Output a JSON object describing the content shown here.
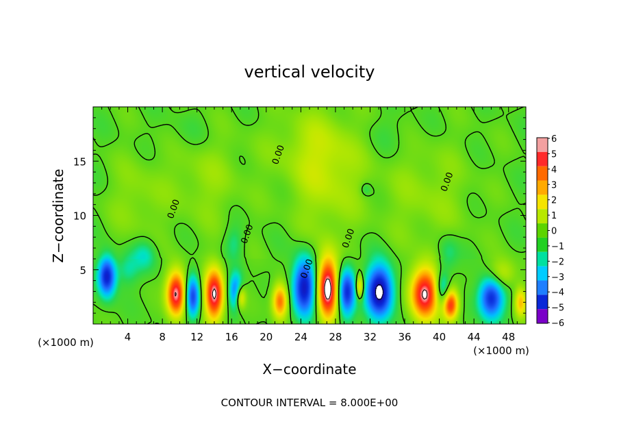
{
  "chart_data": {
    "type": "heatmap",
    "title": "vertical velocity",
    "xlabel": "X−coordinate",
    "ylabel": "Z−coordinate",
    "x_unit_label": "(×1000 m)",
    "footer": "CONTOUR INTERVAL = 8.000E+00",
    "xlim": [
      0,
      50
    ],
    "ylim": [
      0,
      20
    ],
    "x_ticks": [
      4,
      8,
      12,
      16,
      20,
      24,
      28,
      32,
      36,
      40,
      44,
      48
    ],
    "y_ticks": [
      5,
      10,
      15
    ],
    "contour_labels": [
      {
        "text": "0.00",
        "x": 9.6,
        "z": 10.5
      },
      {
        "text": "0.00",
        "x": 21.7,
        "z": 15.5
      },
      {
        "text": "0.00",
        "x": 18.1,
        "z": 8.2
      },
      {
        "text": "0.00",
        "x": 25.0,
        "z": 5.0
      },
      {
        "text": "0.00",
        "x": 29.8,
        "z": 7.8
      },
      {
        "text": "0.00",
        "x": 41.2,
        "z": 13.0
      }
    ],
    "colorbar": {
      "ticks": [
        "6",
        "5",
        "4",
        "3",
        "2",
        "1",
        "0",
        "−1",
        "−2",
        "−3",
        "−4",
        "−5",
        "−6"
      ],
      "colors": [
        "#f3a0a0",
        "#ff2a2a",
        "#ff6a00",
        "#ffaa00",
        "#f5e400",
        "#b8e800",
        "#5cd400",
        "#22d022",
        "#00e0a0",
        "#00ccff",
        "#1f7fff",
        "#0a28d8",
        "#7a00c8"
      ]
    },
    "features": [
      {
        "kind": "down",
        "x": 1.6,
        "z": 4.4,
        "rx": 1.0,
        "rz": 1.8,
        "a": 0.9
      },
      {
        "kind": "up",
        "x": 9.6,
        "z": 2.8,
        "rx": 1.1,
        "rz": 2.1,
        "a": 1.0
      },
      {
        "kind": "down",
        "x": 11.5,
        "z": 2.5,
        "rx": 0.8,
        "rz": 1.9,
        "a": 0.75
      },
      {
        "kind": "up",
        "x": 14.0,
        "z": 2.7,
        "rx": 1.1,
        "rz": 2.4,
        "a": 1.0
      },
      {
        "kind": "down",
        "x": 16.5,
        "z": 3.0,
        "rx": 0.8,
        "rz": 1.6,
        "a": 0.65
      },
      {
        "kind": "up",
        "x": 17.0,
        "z": 2.5,
        "rx": 0.6,
        "rz": 1.1,
        "a": 0.6
      },
      {
        "kind": "up",
        "x": 21.6,
        "z": 2.1,
        "rx": 0.9,
        "rz": 1.6,
        "a": 0.7
      },
      {
        "kind": "down",
        "x": 24.4,
        "z": 3.4,
        "rx": 1.3,
        "rz": 2.6,
        "a": 0.95
      },
      {
        "kind": "up",
        "x": 27.1,
        "z": 3.3,
        "rx": 1.2,
        "rz": 2.9,
        "a": 1.1
      },
      {
        "kind": "down",
        "x": 29.3,
        "z": 2.9,
        "rx": 1.0,
        "rz": 2.2,
        "a": 0.85
      },
      {
        "kind": "up",
        "x": 30.8,
        "z": 3.4,
        "rx": 0.5,
        "rz": 1.1,
        "a": 0.55
      },
      {
        "kind": "down",
        "x": 33.1,
        "z": 3.0,
        "rx": 1.5,
        "rz": 2.4,
        "a": 1.05
      },
      {
        "kind": "up",
        "x": 38.3,
        "z": 2.8,
        "rx": 1.6,
        "rz": 2.4,
        "a": 1.0
      },
      {
        "kind": "down",
        "x": 40.4,
        "z": 3.2,
        "rx": 0.8,
        "rz": 1.6,
        "a": 0.45
      },
      {
        "kind": "up",
        "x": 41.3,
        "z": 1.8,
        "rx": 0.9,
        "rz": 1.4,
        "a": 0.85
      },
      {
        "kind": "down",
        "x": 46.0,
        "z": 2.4,
        "rx": 1.4,
        "rz": 1.9,
        "a": 0.85
      },
      {
        "kind": "up",
        "x": 47.2,
        "z": 4.6,
        "rx": 1.6,
        "rz": 1.4,
        "a": 0.3
      },
      {
        "kind": "up",
        "x": 49.4,
        "z": 2.0,
        "rx": 0.7,
        "rz": 1.4,
        "a": 0.5
      },
      {
        "kind": "down",
        "x": 6.0,
        "z": 6.3,
        "rx": 1.4,
        "rz": 1.5,
        "a": 0.25
      },
      {
        "kind": "down",
        "x": 4.0,
        "z": 5.0,
        "rx": 1.2,
        "rz": 1.4,
        "a": 0.2
      },
      {
        "kind": "down",
        "x": 16.3,
        "z": 7.5,
        "rx": 1.0,
        "rz": 1.5,
        "a": 0.18
      },
      {
        "kind": "down",
        "x": 41.0,
        "z": 6.5,
        "rx": 1.2,
        "rz": 1.6,
        "a": 0.2
      },
      {
        "kind": "down",
        "x": 31.5,
        "z": 12.4,
        "rx": 0.6,
        "rz": 0.6,
        "a": 0.15
      },
      {
        "kind": "up",
        "x": 27.0,
        "z": 13.0,
        "rx": 4.0,
        "rz": 5.0,
        "a": 0.2
      },
      {
        "kind": "up",
        "x": 25.5,
        "z": 16.5,
        "rx": 5.0,
        "rz": 3.5,
        "a": 0.15
      },
      {
        "kind": "up",
        "x": 13.0,
        "z": 13.5,
        "rx": 4.5,
        "rz": 4.5,
        "a": 0.13
      },
      {
        "kind": "up",
        "x": 38.5,
        "z": 12.0,
        "rx": 5.0,
        "rz": 5.0,
        "a": 0.13
      },
      {
        "kind": "up",
        "x": 5.0,
        "z": 11.5,
        "rx": 3.0,
        "rz": 4.0,
        "a": 0.12
      },
      {
        "kind": "down",
        "x": 11.0,
        "z": 17.5,
        "rx": 3.5,
        "rz": 2.0,
        "a": 0.06
      },
      {
        "kind": "down",
        "x": 34.5,
        "z": 17.5,
        "rx": 3.5,
        "rz": 2.0,
        "a": 0.06
      }
    ]
  }
}
